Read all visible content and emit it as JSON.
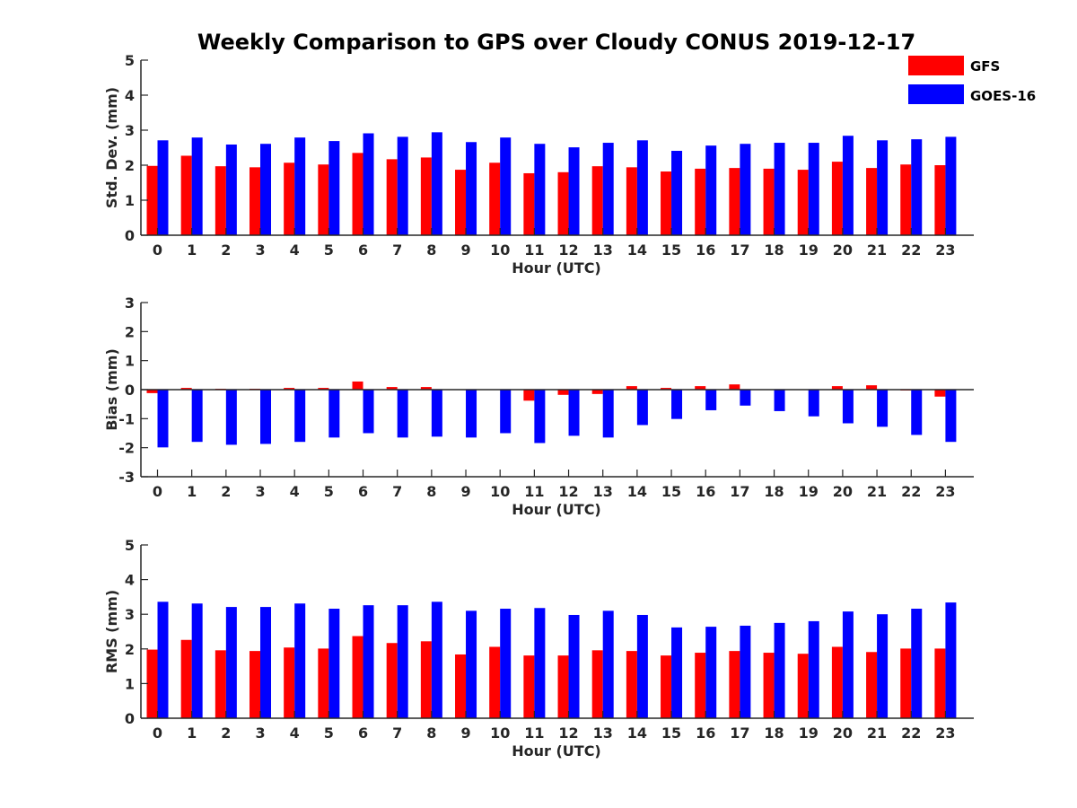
{
  "chart_data": {
    "type": "bar",
    "title": "Weekly Comparison to GPS over Cloudy CONUS 2019-12-17",
    "legend": {
      "placement": "top-right",
      "entries": [
        {
          "name": "GFS",
          "color": "#ff0000"
        },
        {
          "name": "GOES-16",
          "color": "#0000ff"
        }
      ]
    },
    "categories": [
      "0",
      "1",
      "2",
      "3",
      "4",
      "5",
      "6",
      "7",
      "8",
      "9",
      "10",
      "11",
      "12",
      "13",
      "14",
      "15",
      "16",
      "17",
      "18",
      "19",
      "20",
      "21",
      "22",
      "23"
    ],
    "panels": [
      {
        "ylabel": "Std. Dev. (mm)",
        "xlabel": "Hour (UTC)",
        "ylim": [
          0,
          5
        ],
        "yticks": [
          0,
          1,
          2,
          3,
          4,
          5
        ],
        "zero_line": false,
        "series": [
          {
            "name": "GFS",
            "color": "#ff0000",
            "values": [
              1.98,
              2.27,
              1.97,
              1.94,
              2.07,
              2.02,
              2.35,
              2.17,
              2.22,
              1.87,
              2.07,
              1.77,
              1.8,
              1.97,
              1.94,
              1.82,
              1.9,
              1.92,
              1.9,
              1.87,
              2.1,
              1.92,
              2.02,
              2.0
            ]
          },
          {
            "name": "GOES-16",
            "color": "#0000ff",
            "values": [
              2.71,
              2.79,
              2.59,
              2.61,
              2.79,
              2.69,
              2.91,
              2.81,
              2.94,
              2.66,
              2.79,
              2.61,
              2.51,
              2.64,
              2.71,
              2.41,
              2.56,
              2.61,
              2.64,
              2.64,
              2.84,
              2.71,
              2.74,
              2.81
            ]
          }
        ]
      },
      {
        "ylabel": "Bias (mm)",
        "xlabel": "Hour (UTC)",
        "ylim": [
          -3,
          3
        ],
        "yticks": [
          -3,
          -2,
          -1,
          0,
          1,
          2,
          3
        ],
        "zero_line": true,
        "series": [
          {
            "name": "GFS",
            "color": "#ff0000",
            "values": [
              -0.12,
              0.06,
              0.03,
              0.03,
              0.06,
              0.06,
              0.28,
              0.09,
              0.09,
              0.0,
              0.0,
              -0.38,
              -0.18,
              -0.15,
              0.12,
              0.06,
              0.12,
              0.18,
              0.0,
              0.0,
              0.12,
              0.15,
              -0.03,
              -0.24
            ]
          },
          {
            "name": "GOES-16",
            "color": "#0000ff",
            "values": [
              -1.99,
              -1.8,
              -1.9,
              -1.87,
              -1.8,
              -1.65,
              -1.5,
              -1.65,
              -1.62,
              -1.65,
              -1.5,
              -1.84,
              -1.59,
              -1.65,
              -1.22,
              -1.01,
              -0.71,
              -0.55,
              -0.74,
              -0.92,
              -1.16,
              -1.28,
              -1.56,
              -1.8
            ]
          }
        ]
      },
      {
        "ylabel": "RMS (mm)",
        "xlabel": "Hour (UTC)",
        "ylim": [
          0,
          5
        ],
        "yticks": [
          0,
          1,
          2,
          3,
          4,
          5
        ],
        "zero_line": false,
        "series": [
          {
            "name": "GFS",
            "color": "#ff0000",
            "values": [
              1.98,
              2.26,
              1.96,
              1.94,
              2.04,
              2.01,
              2.37,
              2.17,
              2.22,
              1.84,
              2.06,
              1.81,
              1.81,
              1.96,
              1.94,
              1.81,
              1.89,
              1.94,
              1.89,
              1.86,
              2.06,
              1.91,
              2.01,
              2.01
            ]
          },
          {
            "name": "GOES-16",
            "color": "#0000ff",
            "values": [
              3.36,
              3.31,
              3.21,
              3.21,
              3.31,
              3.16,
              3.26,
              3.26,
              3.36,
              3.1,
              3.16,
              3.18,
              2.98,
              3.1,
              2.98,
              2.62,
              2.64,
              2.67,
              2.75,
              2.8,
              3.08,
              3.0,
              3.16,
              3.34
            ]
          }
        ]
      }
    ]
  }
}
